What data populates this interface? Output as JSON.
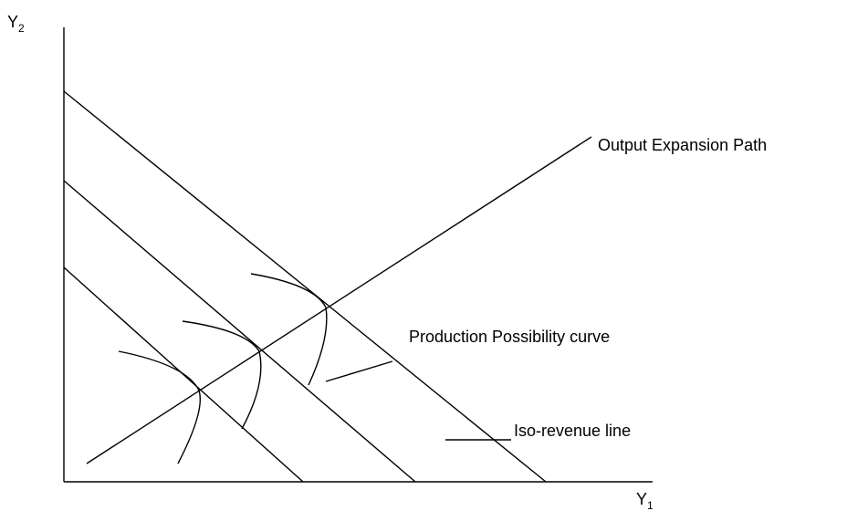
{
  "axes": {
    "y": {
      "label": "Y",
      "subscript": "2"
    },
    "x": {
      "label": "Y",
      "subscript": "1"
    }
  },
  "labels": {
    "expansion_path": "Output Expansion Path",
    "ppc": "Production Possibility curve",
    "iso_revenue": "Iso-revenue line"
  }
}
